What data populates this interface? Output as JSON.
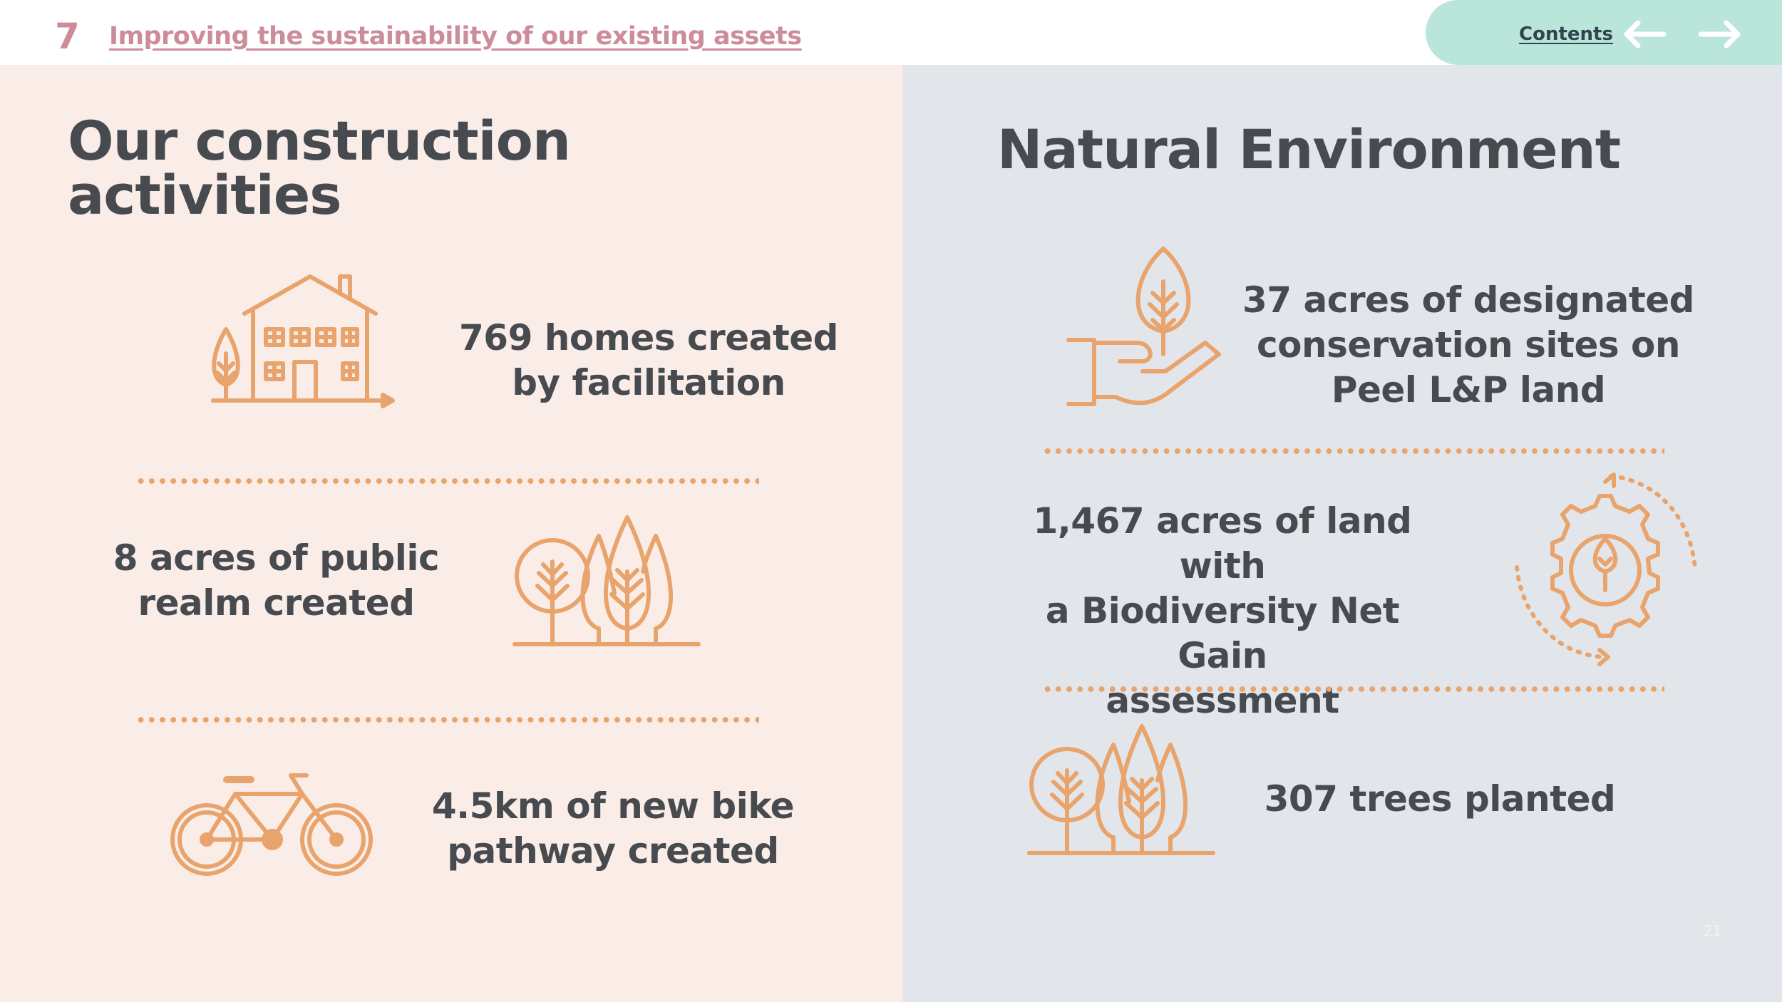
{
  "header": {
    "section_number": "7",
    "section_title": "Improving the sustainability of our existing assets",
    "contents_label": "Contents",
    "prev_icon": "arrow-left-icon",
    "next_icon": "arrow-right-icon"
  },
  "left": {
    "heading_line1": "Our construction",
    "heading_line2": "activities",
    "stats": [
      {
        "icon": "house-tree-icon",
        "line1": "769 homes created",
        "line2": "by facilitation"
      },
      {
        "icon": "trees-icon",
        "line1": "8 acres of public",
        "line2": "realm created"
      },
      {
        "icon": "bicycle-icon",
        "line1": "4.5km of new bike",
        "line2": "pathway created"
      }
    ]
  },
  "right": {
    "heading": "Natural Environment",
    "stats": [
      {
        "icon": "hand-plant-icon",
        "line1": "37 acres of designated",
        "line2": "conservation sites on",
        "line3": "Peel L&P land"
      },
      {
        "icon": "gear-cycle-icon",
        "line1": "1,467 acres of land with",
        "line2": "a Biodiversity Net Gain",
        "line3": "assessment"
      },
      {
        "icon": "trees-icon",
        "line1": "307 trees planted"
      }
    ]
  },
  "page_number": "21",
  "colors": {
    "accent_orange": "#e8a46c",
    "pink": "#cc8c99",
    "mint": "#b9e5db",
    "left_bg": "#faede8",
    "right_bg": "#e2e6ea",
    "text": "#474b50"
  }
}
